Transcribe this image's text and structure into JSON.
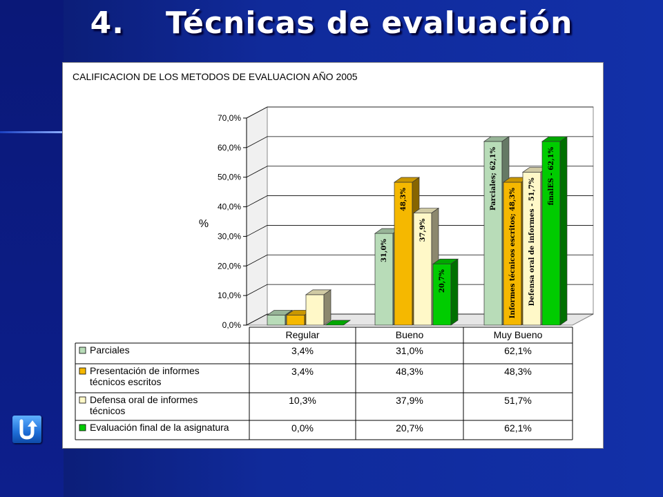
{
  "slide": {
    "number": "4.",
    "title": "Técnicas de evaluación"
  },
  "chart_data": {
    "type": "bar",
    "title": "CALIFICACION DE LOS METODOS DE EVALUACION AÑO 2005",
    "ylabel": "%",
    "ylim": [
      0,
      70
    ],
    "yticks": [
      "0,0%",
      "10,0%",
      "20,0%",
      "30,0%",
      "40,0%",
      "50,0%",
      "60,0%",
      "70,0%"
    ],
    "categories": [
      "Regular",
      "Bueno",
      "Muy Bueno"
    ],
    "series": [
      {
        "name": "Parciales",
        "values": [
          3.4,
          31.0,
          62.1
        ],
        "color": "#b8dcb8",
        "labels": [
          "3,4%",
          "31,0%",
          "62,1%"
        ],
        "bar_labels": [
          "",
          "31,0%",
          "Parciales; 62,1%"
        ]
      },
      {
        "name": "Presentación de informes técnicos escritos",
        "values": [
          3.4,
          48.3,
          48.3
        ],
        "color": "#f5b800",
        "labels": [
          "3,4%",
          "48,3%",
          "48,3%"
        ],
        "bar_labels": [
          "",
          "48,3%",
          "Informes técnicos escritos; 48,3%"
        ]
      },
      {
        "name": "Defensa oral de informes técnicos",
        "values": [
          10.3,
          37.9,
          51.7
        ],
        "color": "#fff8c8",
        "labels": [
          "10,3%",
          "37,9%",
          "51,7%"
        ],
        "bar_labels": [
          "",
          "37,9%",
          "Defensa oral de informes - 51,7%"
        ]
      },
      {
        "name": "Evaluación final de la asignatura",
        "values": [
          0.0,
          20.7,
          62.1
        ],
        "color": "#00cc00",
        "labels": [
          "0,0%",
          "20,7%",
          "62,1%"
        ],
        "bar_labels": [
          "",
          "20,7%",
          "finalES - 62,1%"
        ]
      }
    ],
    "legend_rows": [
      [
        "Parciales"
      ],
      [
        "Presentación de informes",
        "técnicos escritos"
      ],
      [
        "Defensa oral de informes",
        "técnicos"
      ],
      [
        "Evaluación final de la asignatura"
      ]
    ],
    "grid": true,
    "legend": "data-table"
  },
  "nav": {
    "back_icon": "u-turn-arrow-icon"
  }
}
